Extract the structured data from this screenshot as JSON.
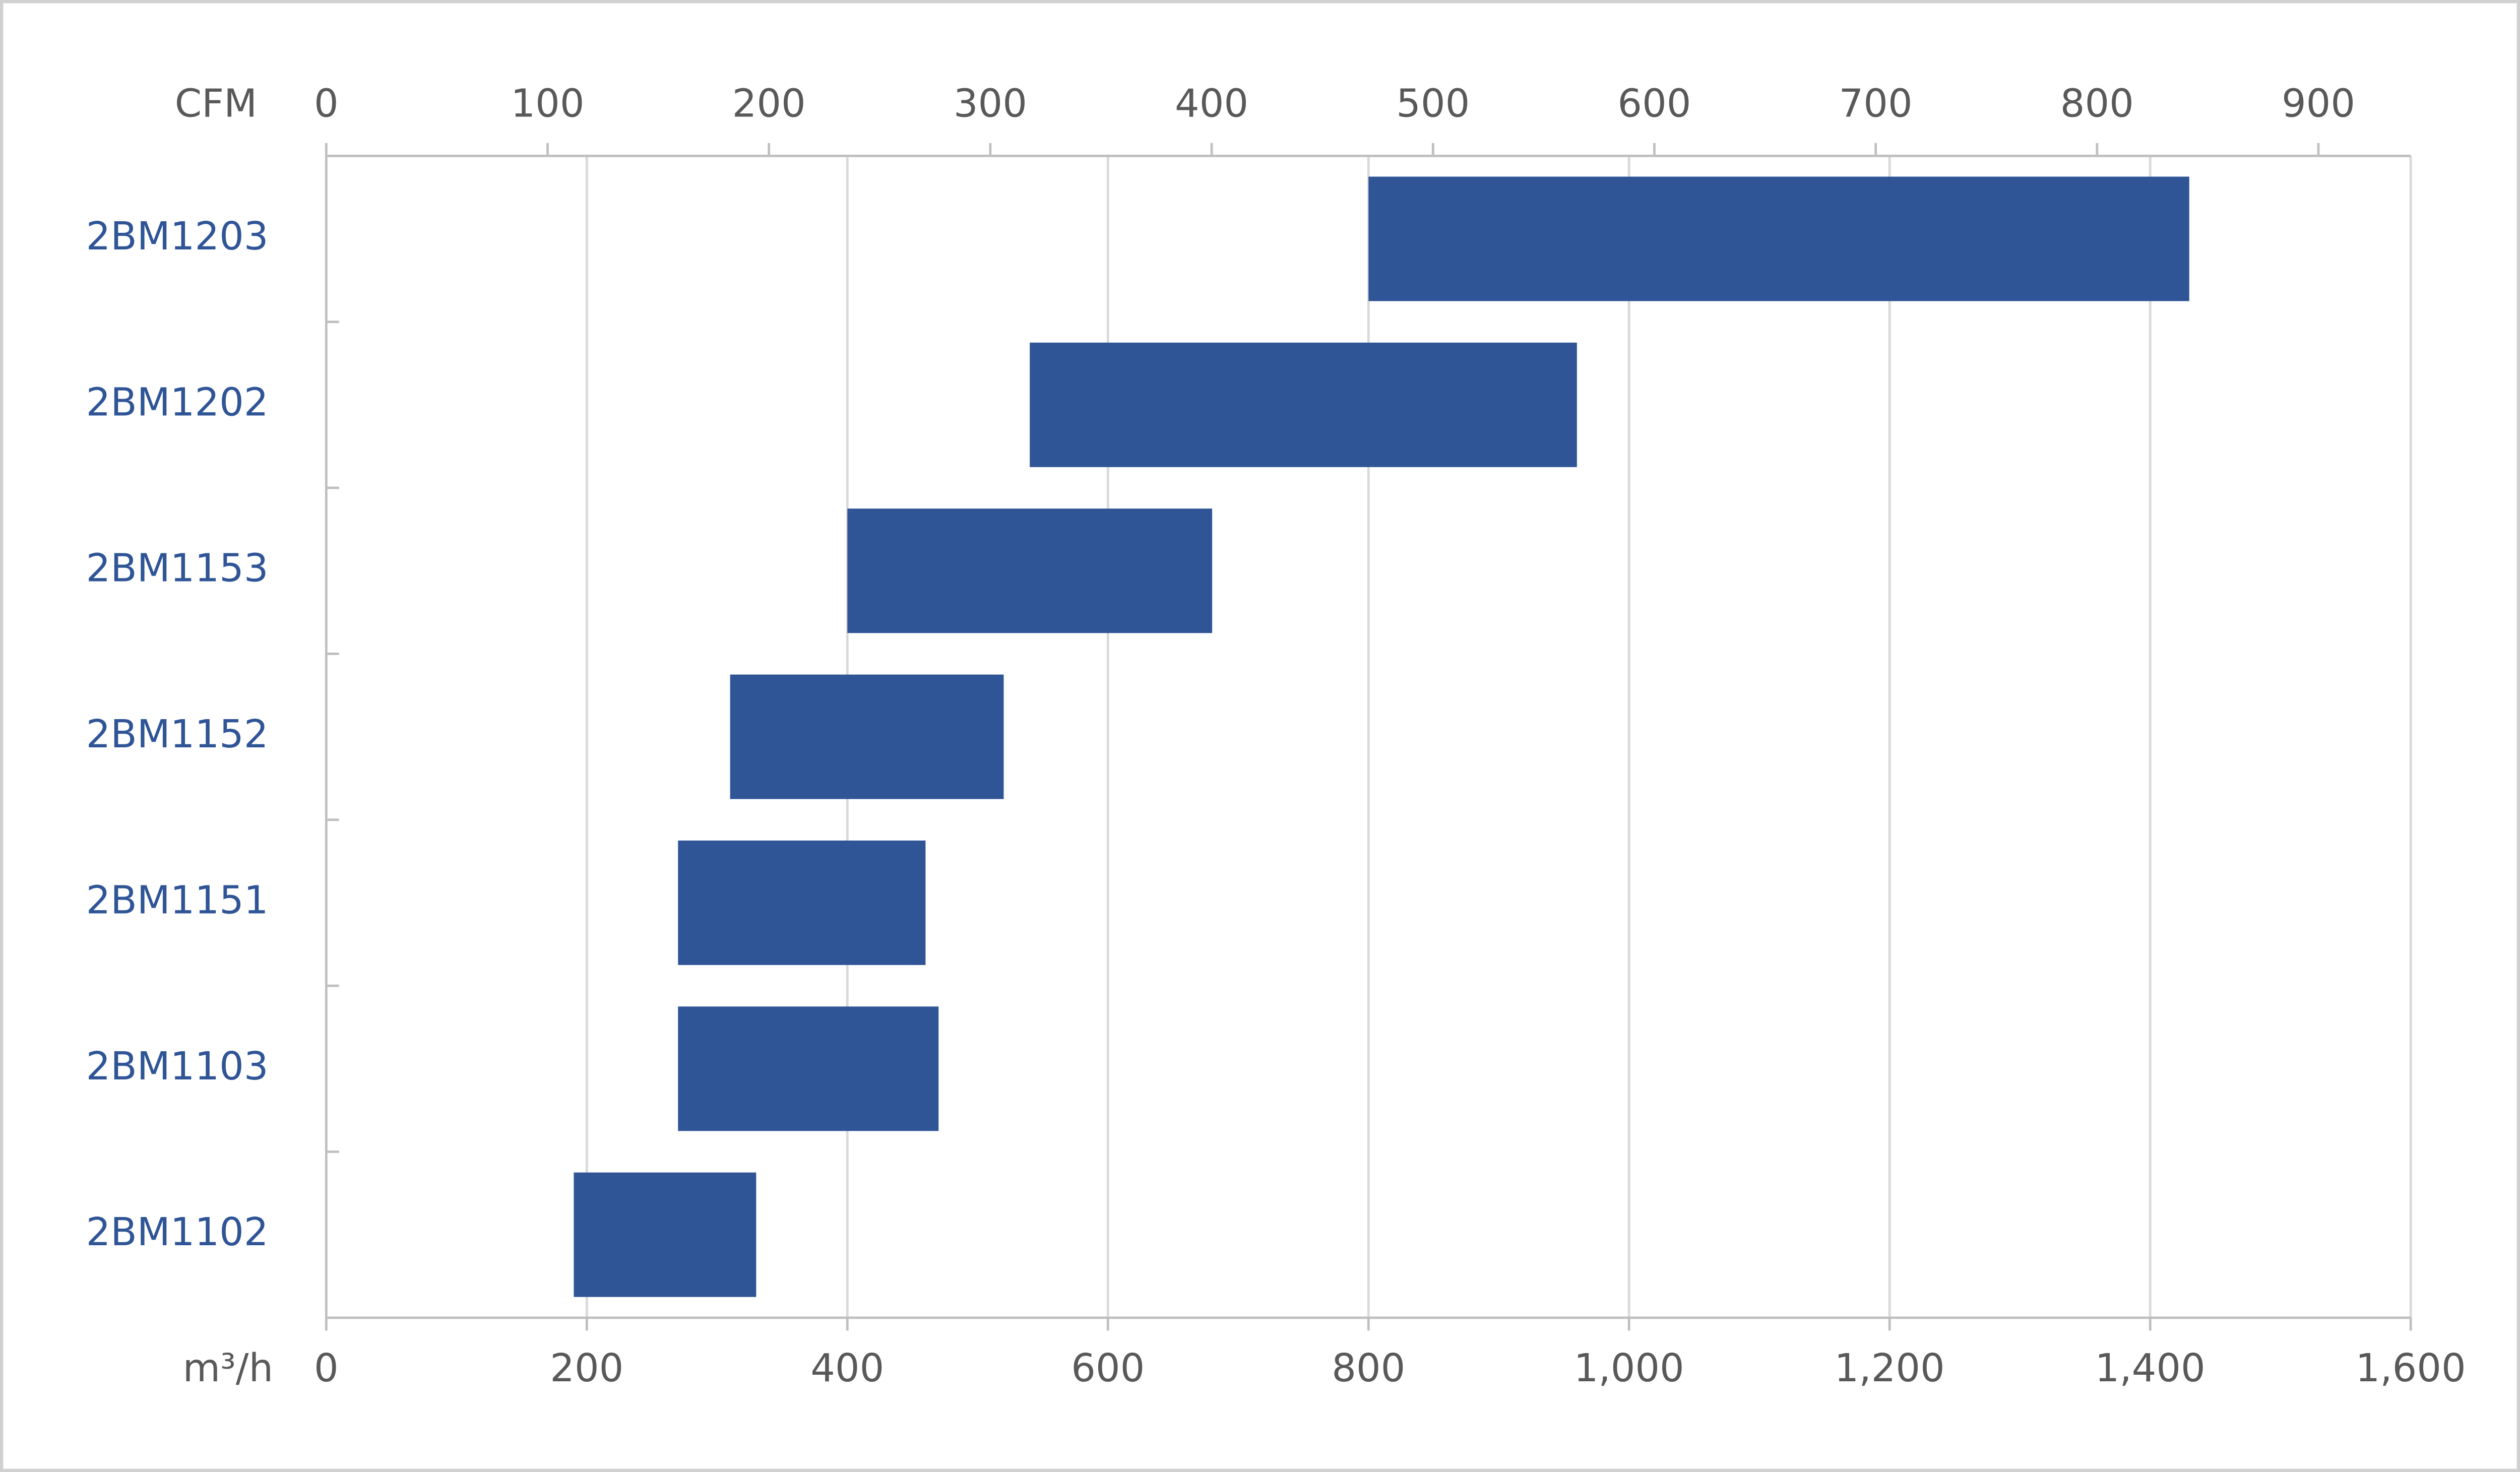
{
  "chart_data": {
    "type": "range_bar",
    "orientation": "horizontal",
    "categories": [
      "2BM1203",
      "2BM1202",
      "2BM1153",
      "2BM1152",
      "2BM1151",
      "2BM1103",
      "2BM1102"
    ],
    "low": [
      800,
      540,
      400,
      310,
      270,
      270,
      190
    ],
    "high": [
      1430,
      960,
      680,
      520,
      460,
      470,
      330
    ],
    "color": "#2f5597",
    "xlabel": "m³/h",
    "xlim": [
      0,
      1600
    ],
    "xticks": [
      0,
      200,
      400,
      600,
      800,
      {
        "value": 1000,
        "label": "1,000"
      },
      {
        "value": 1200,
        "label": "1,200"
      },
      {
        "value": 1400,
        "label": "1,400"
      },
      {
        "value": 1600,
        "label": "1,600"
      }
    ],
    "x2label": "CFM",
    "x2lim": [
      0,
      941.7
    ],
    "x2ticks": [
      0,
      100,
      200,
      300,
      400,
      500,
      600,
      700,
      800,
      900
    ],
    "grid": true
  }
}
